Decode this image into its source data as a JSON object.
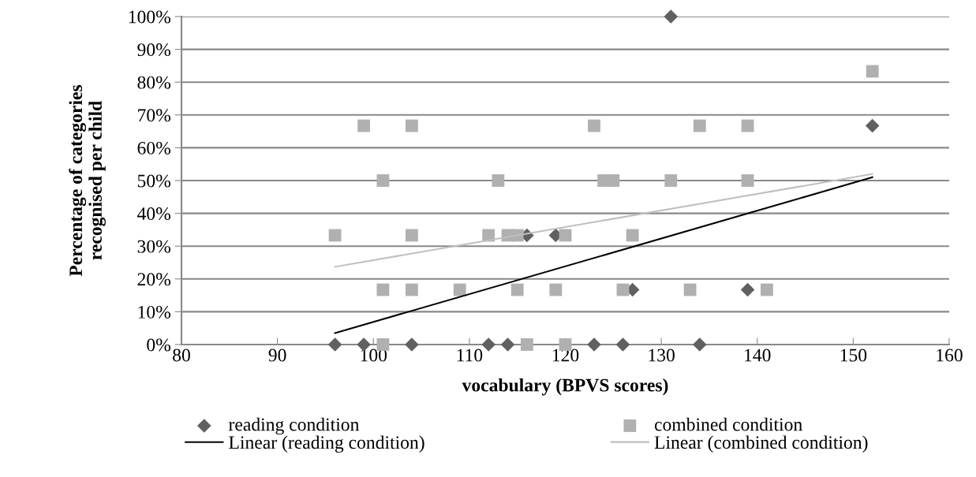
{
  "chart_data": {
    "type": "scatter",
    "xlabel": "vocabulary (BPVS scores)",
    "ylabel": "Percentage of categories\nrecognised per child",
    "xlim": [
      80,
      160
    ],
    "xticks": [
      80,
      90,
      100,
      110,
      120,
      130,
      140,
      150,
      160
    ],
    "ylim": [
      0,
      100
    ],
    "yticks": [
      {
        "value": 0,
        "label": "0%"
      },
      {
        "value": 10,
        "label": "10%"
      },
      {
        "value": 20,
        "label": "20%"
      },
      {
        "value": 30,
        "label": "30%"
      },
      {
        "value": 40,
        "label": "40%"
      },
      {
        "value": 50,
        "label": "50%"
      },
      {
        "value": 60,
        "label": "60%"
      },
      {
        "value": 70,
        "label": "70%"
      },
      {
        "value": 80,
        "label": "80%"
      },
      {
        "value": 90,
        "label": "90%"
      },
      {
        "value": 100,
        "label": "100%"
      }
    ],
    "grid": "y",
    "legend": "bottom",
    "series": [
      {
        "name": "reading condition",
        "marker": "diamond",
        "color": "#606060",
        "x": [
          96,
          99,
          104,
          112,
          114,
          123,
          126,
          134,
          116,
          119,
          127,
          139,
          131,
          152
        ],
        "values": [
          0,
          0,
          0,
          0,
          0,
          0,
          0,
          0,
          33.3,
          33.3,
          16.7,
          16.7,
          100,
          66.7
        ]
      },
      {
        "name": "combined condition",
        "marker": "square",
        "color": "#b0b0b0",
        "x": [
          96,
          99,
          101,
          101,
          101,
          104,
          104,
          104,
          109,
          112,
          113,
          114,
          115,
          115,
          116,
          120,
          120,
          119,
          123,
          124,
          125,
          126,
          127,
          131,
          133,
          134,
          139,
          139,
          141,
          152
        ],
        "values": [
          33.3,
          66.7,
          50,
          16.7,
          0,
          66.7,
          33.3,
          16.7,
          16.7,
          33.3,
          50,
          33.3,
          33.3,
          16.7,
          0,
          0,
          33.3,
          16.7,
          66.7,
          50,
          50,
          16.7,
          33.3,
          50,
          16.7,
          66.7,
          66.7,
          50,
          16.7,
          83.3
        ]
      },
      {
        "name": "Linear (reading condition)",
        "type": "line",
        "marker": "none",
        "line_style": "solid",
        "color": "#000000",
        "x": [
          96,
          152
        ],
        "values": [
          3.5,
          51
        ]
      },
      {
        "name": "Linear (combined condition)",
        "type": "line",
        "marker": "none",
        "line_style": "solid",
        "color": "#bfbfbf",
        "x": [
          96,
          152
        ],
        "values": [
          23.7,
          52
        ]
      }
    ]
  }
}
